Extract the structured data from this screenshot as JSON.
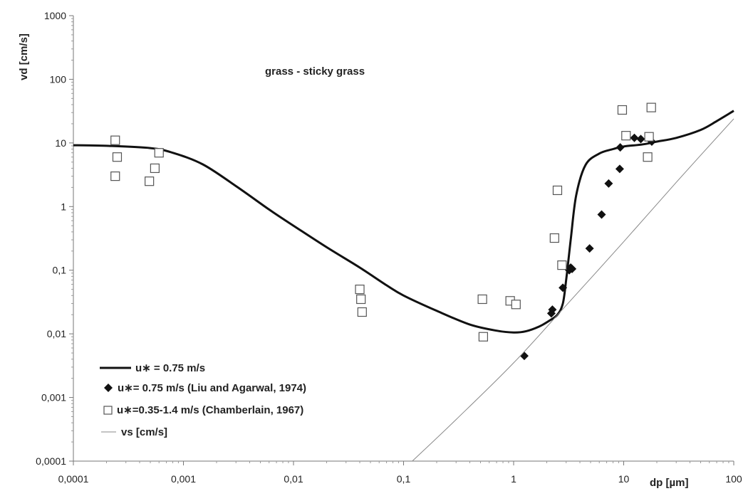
{
  "chart_data": {
    "type": "scatter",
    "title": "grass - sticky grass",
    "xlabel": "dp [µm]",
    "ylabel": "vd [cm/s]",
    "xscale": "log",
    "yscale": "log",
    "xlim": [
      0.0001,
      100
    ],
    "ylim": [
      0.0001,
      1000
    ],
    "grid": false,
    "legend_position": "bottom-left",
    "x_tick_labels": [
      "0,0001",
      "0,001",
      "0,01",
      "0,1",
      "1",
      "10",
      "100"
    ],
    "y_tick_labels": [
      "0,0001",
      "0,001",
      "0,01",
      "0,1",
      "1",
      "10",
      "100",
      "1000"
    ],
    "series": [
      {
        "name": "u∗ = 0.75 m/s",
        "kind": "line",
        "color": "#111111",
        "x": [
          0.0001,
          0.0002,
          0.0005,
          0.0008,
          0.0015,
          0.003,
          0.006,
          0.01,
          0.02,
          0.04,
          0.07,
          0.1,
          0.2,
          0.4,
          0.7,
          1.0,
          1.3,
          1.7,
          2.1,
          2.5,
          2.8,
          3.0,
          3.3,
          3.7,
          4.5,
          6,
          8,
          10,
          15,
          20,
          30,
          50,
          70,
          100
        ],
        "y": [
          9.2,
          9.0,
          8.3,
          7.0,
          4.6,
          2.1,
          0.9,
          0.5,
          0.23,
          0.11,
          0.058,
          0.04,
          0.023,
          0.014,
          0.0112,
          0.0105,
          0.011,
          0.013,
          0.016,
          0.02,
          0.03,
          0.07,
          0.3,
          1.5,
          4.5,
          6.8,
          8.0,
          8.8,
          9.5,
          10.5,
          12.0,
          16.0,
          22.0,
          32.0
        ]
      },
      {
        "name": "u∗= 0.75 m/s (Liu and Agarwal, 1974)",
        "kind": "scatter",
        "marker": "diamond-filled",
        "color": "#111111",
        "x": [
          1.25,
          2.2,
          2.25,
          2.8,
          3.2,
          3.3,
          3.4,
          4.9,
          6.3,
          7.3,
          9.2,
          9.3,
          12.5,
          14.3,
          18.0
        ],
        "y": [
          0.0045,
          0.021,
          0.024,
          0.053,
          0.1,
          0.11,
          0.105,
          0.22,
          0.75,
          2.3,
          3.9,
          8.5,
          12.0,
          11.5,
          10.5
        ]
      },
      {
        "name": "u∗=0.35-1.4 m/s (Chamberlain, 1967)",
        "kind": "scatter",
        "marker": "square-open",
        "color": "#555555",
        "x": [
          0.00024,
          0.00025,
          0.00024,
          0.00049,
          0.00055,
          0.0006,
          0.04,
          0.041,
          0.042,
          0.52,
          0.53,
          0.93,
          1.05,
          2.35,
          2.5,
          2.75,
          9.7,
          10.5,
          16.5,
          17.0,
          17.8
        ],
        "y": [
          11.0,
          6.0,
          3.0,
          2.5,
          4.0,
          7.0,
          0.05,
          0.035,
          0.022,
          0.035,
          0.009,
          0.033,
          0.029,
          0.32,
          1.8,
          0.12,
          33.0,
          13.0,
          6.0,
          12.5,
          36.0
        ]
      },
      {
        "name": "vs [cm/s]",
        "kind": "line",
        "color": "#888888",
        "x": [
          0.12,
          0.3,
          1,
          3,
          10,
          30,
          100
        ],
        "y": [
          0.0001,
          0.00045,
          0.0035,
          0.028,
          0.28,
          2.4,
          24.0
        ]
      }
    ]
  }
}
